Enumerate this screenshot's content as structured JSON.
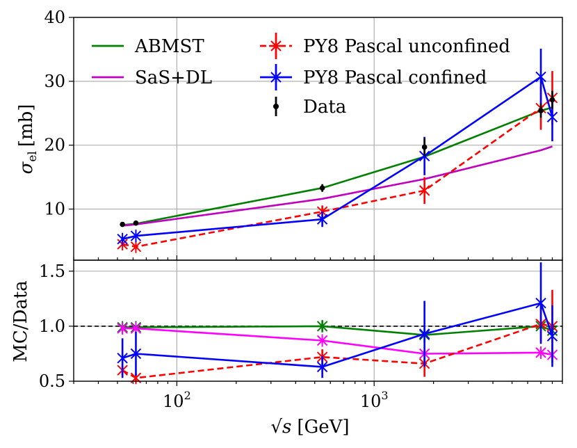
{
  "chart_data": {
    "type": "line",
    "xscale": "log",
    "xlim": [
      30,
      9000
    ],
    "x_ticks": [
      {
        "value": 100,
        "label": "10",
        "exp": "2"
      },
      {
        "value": 1000,
        "label": "10",
        "exp": "3"
      }
    ],
    "xlabel_sqrt": "√s",
    "xlabel_unit": "[GeV]",
    "energies": [
      53,
      62,
      546,
      1800,
      7000,
      8000
    ],
    "top": {
      "ylabel_main": "σ",
      "ylabel_sub": "el",
      "ylabel_unit": "[mb]",
      "ylim": [
        2,
        40
      ],
      "yticks": [
        10,
        20,
        30,
        40
      ],
      "grid": true,
      "series": [
        {
          "name": "ABMST",
          "color": "#008000",
          "style": "solid",
          "marker": "none",
          "x": [
            53,
            62,
            546,
            1800,
            7000,
            8000
          ],
          "y": [
            7.5,
            7.7,
            13.3,
            18.2,
            25.4,
            25.9
          ]
        },
        {
          "name": "SaS+DL",
          "color": "#bf00bf",
          "style": "solid",
          "marker": "none",
          "x": [
            53,
            62,
            546,
            1800,
            7000,
            8000
          ],
          "y": [
            7.4,
            7.6,
            11.6,
            14.7,
            19.2,
            19.8
          ]
        },
        {
          "name": "PY8 Pascal unconfined",
          "color": "#ff0000",
          "style": "dashed",
          "marker": "x",
          "x": [
            53,
            62,
            546,
            1800,
            7000,
            8000
          ],
          "y": [
            4.5,
            4.1,
            9.6,
            12.9,
            25.8,
            27.4
          ],
          "yerr": [
            0.3,
            0.3,
            0.9,
            2.1,
            3.4,
            4.2
          ]
        },
        {
          "name": "PY8 Pascal confined",
          "color": "#0000ff",
          "style": "solid",
          "marker": "x",
          "x": [
            53,
            62,
            546,
            1800,
            7000,
            8000
          ],
          "y": [
            5.3,
            5.8,
            8.4,
            18.3,
            30.7,
            24.4
          ],
          "yerr": [
            0.3,
            0.3,
            1.2,
            3.0,
            4.4,
            3.8
          ]
        },
        {
          "name": "Data",
          "color": "#000000",
          "style": "none",
          "marker": "dot",
          "x": [
            53,
            62,
            546,
            1800,
            7000,
            8000
          ],
          "y": [
            7.6,
            7.8,
            13.3,
            19.7,
            25.4,
            27.1
          ],
          "yerr": [
            0.2,
            0.2,
            0.6,
            1.4,
            1.1,
            1.4
          ]
        }
      ]
    },
    "bottom": {
      "ylabel": "MC/Data",
      "ylim": [
        0.5,
        1.6
      ],
      "yticks": [
        0.5,
        1.0,
        1.5
      ],
      "ytick_labels": [
        "0.5",
        "1.0",
        "1.5"
      ],
      "reference_line": 1.0,
      "grid": true,
      "series": [
        {
          "name": "ABMST",
          "color": "#008000",
          "style": "solid",
          "marker": "x",
          "x": [
            53,
            62,
            546,
            1800,
            7000,
            8000
          ],
          "y": [
            0.99,
            0.99,
            1.0,
            0.92,
            1.0,
            0.96
          ],
          "yerr": [
            0.0,
            0.0,
            0.05,
            0.07,
            0.04,
            0.05
          ]
        },
        {
          "name": "SaS+DL",
          "color": "#ff00ff",
          "style": "solid",
          "marker": "x",
          "x": [
            53,
            62,
            546,
            1800,
            7000,
            8000
          ],
          "y": [
            0.98,
            0.98,
            0.87,
            0.75,
            0.76,
            0.74
          ]
        },
        {
          "name": "PY8 Pascal unconfined",
          "color": "#ff0000",
          "style": "dashed",
          "marker": "x",
          "x": [
            53,
            62,
            546,
            1800,
            7000,
            8000
          ],
          "y": [
            0.6,
            0.53,
            0.72,
            0.66,
            1.02,
            1.0
          ],
          "yerr": [
            0.05,
            0.04,
            0.07,
            0.12,
            0.16,
            0.33
          ]
        },
        {
          "name": "PY8 Pascal confined",
          "color": "#0000ff",
          "style": "solid",
          "marker": "x",
          "x": [
            53,
            62,
            546,
            1800,
            7000,
            8000
          ],
          "y": [
            0.71,
            0.75,
            0.63,
            0.93,
            1.21,
            0.91
          ],
          "yerr": [
            0.18,
            0.2,
            0.1,
            0.3,
            0.37,
            0.28
          ]
        }
      ]
    }
  }
}
